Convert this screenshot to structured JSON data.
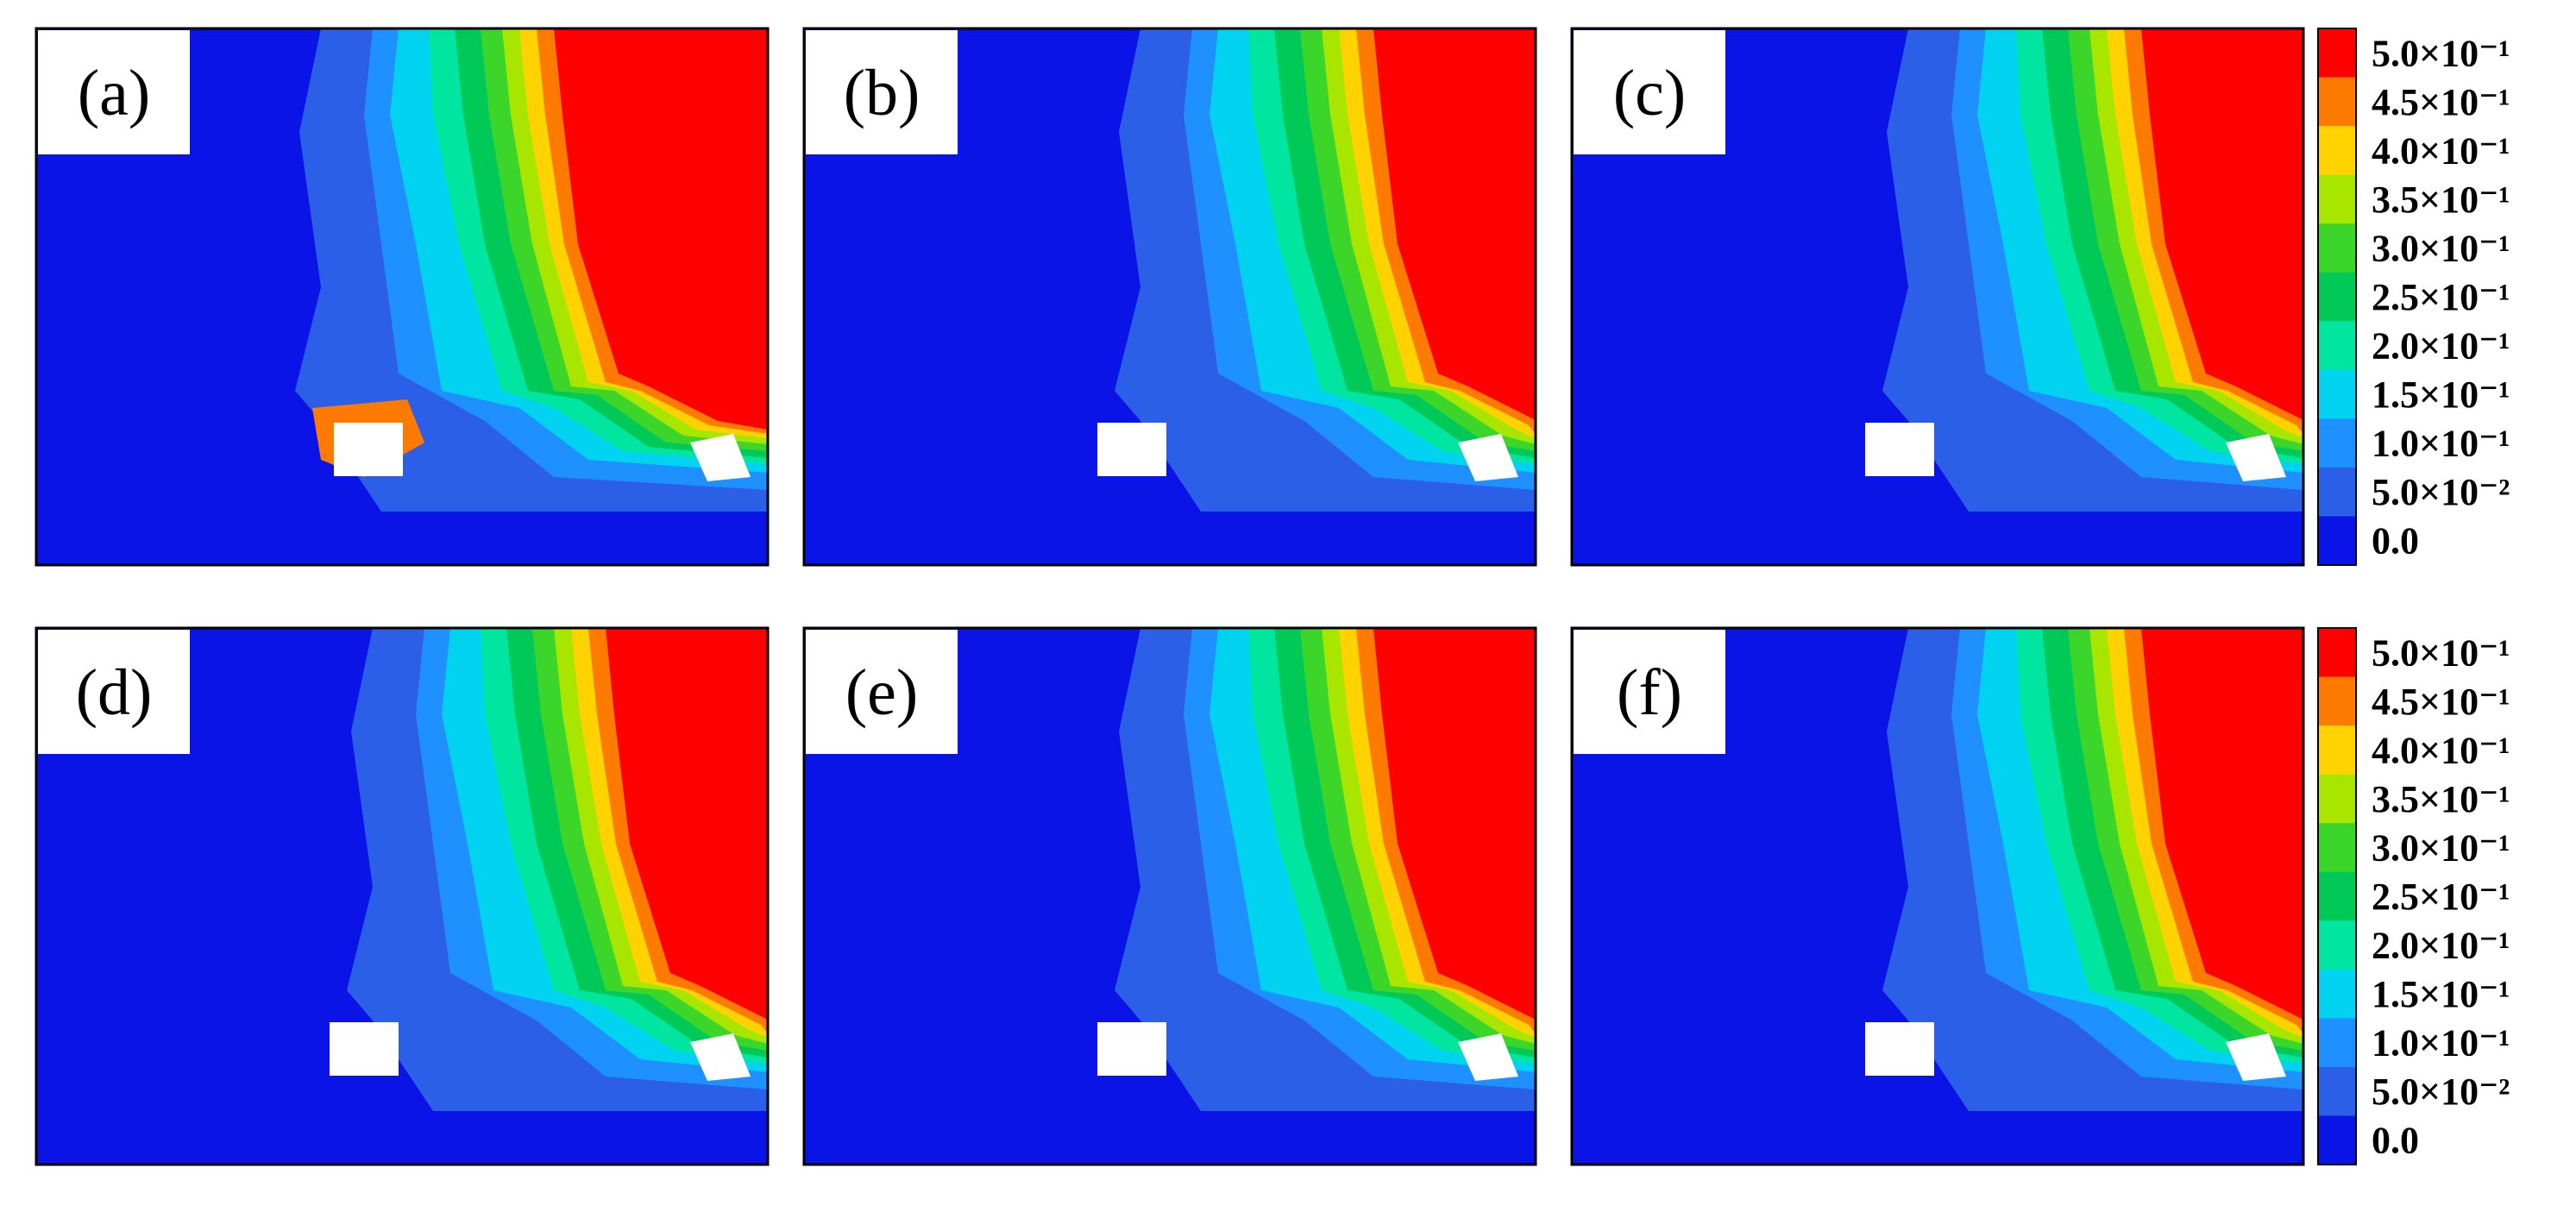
{
  "colors": {
    "background": "#ffffff",
    "frame": "#000000",
    "label_box": "#ffffff",
    "obstacle": "#ffffff"
  },
  "colorbar": {
    "levels": [
      {
        "label": "5.0×10⁻¹",
        "value": 0.5,
        "color": "#ff0000"
      },
      {
        "label": "4.5×10⁻¹",
        "value": 0.45,
        "color": "#ff7a00"
      },
      {
        "label": "4.0×10⁻¹",
        "value": 0.4,
        "color": "#ffd200"
      },
      {
        "label": "3.5×10⁻¹",
        "value": 0.35,
        "color": "#a8e600"
      },
      {
        "label": "3.0×10⁻¹",
        "value": 0.3,
        "color": "#3cd62a"
      },
      {
        "label": "2.5×10⁻¹",
        "value": 0.25,
        "color": "#00c957"
      },
      {
        "label": "2.0×10⁻¹",
        "value": 0.2,
        "color": "#00e6a0"
      },
      {
        "label": "1.5×10⁻¹",
        "value": 0.15,
        "color": "#00d2f0"
      },
      {
        "label": "1.0×10⁻¹",
        "value": 0.1,
        "color": "#1e90ff"
      },
      {
        "label": "5.0×10⁻²",
        "value": 0.05,
        "color": "#2c5fe8"
      },
      {
        "label": "0.0",
        "value": 0.0,
        "color": "#0a14e6"
      }
    ]
  },
  "chart_data": {
    "type": "heatmap",
    "panels": [
      {
        "label": "(a)"
      },
      {
        "label": "(b)"
      },
      {
        "label": "(c)"
      },
      {
        "label": "(d)"
      },
      {
        "label": "(e)"
      },
      {
        "label": "(f)"
      }
    ],
    "grid": false,
    "legend_placement": "right",
    "colorbar_count": 2
  }
}
